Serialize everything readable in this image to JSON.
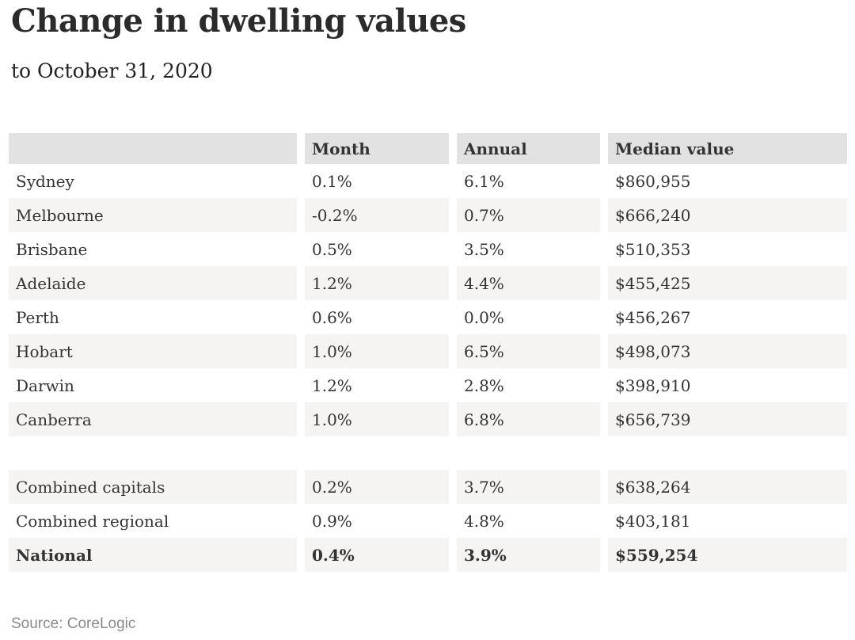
{
  "page": {
    "title": "Change in dwelling values",
    "subtitle": "to October 31, 2020",
    "source_note": "Source: CoreLogic"
  },
  "colors": {
    "header_bg": "#e2e2e2",
    "shaded_row_bg": "#f5f4f2",
    "body_text": "#333333",
    "title_text": "#2b2b2b",
    "source_text": "#8a8a8a"
  },
  "chart_data": {
    "type": "table",
    "title": "Change in dwelling values",
    "subtitle": "to October 31, 2020",
    "source": "Source: CoreLogic",
    "headers": [
      "",
      "Month",
      "Annual",
      "Median value"
    ],
    "rows": [
      {
        "label": "Sydney",
        "month": "0.1%",
        "annual": "6.1%",
        "median": "$860,955"
      },
      {
        "label": "Melbourne",
        "month": "-0.2%",
        "annual": "0.7%",
        "median": "$666,240"
      },
      {
        "label": "Brisbane",
        "month": "0.5%",
        "annual": "3.5%",
        "median": "$510,353"
      },
      {
        "label": "Adelaide",
        "month": "1.2%",
        "annual": "4.4%",
        "median": "$455,425"
      },
      {
        "label": "Perth",
        "month": "0.6%",
        "annual": "0.0%",
        "median": "$456,267"
      },
      {
        "label": "Hobart",
        "month": "1.0%",
        "annual": "6.5%",
        "median": "$498,073"
      },
      {
        "label": "Darwin",
        "month": "1.2%",
        "annual": "2.8%",
        "median": "$398,910"
      },
      {
        "label": "Canberra",
        "month": "1.0%",
        "annual": "6.8%",
        "median": "$656,739"
      },
      {
        "label": "Combined capitals",
        "month": "0.2%",
        "annual": "3.7%",
        "median": "$638,264"
      },
      {
        "label": "Combined regional",
        "month": "0.9%",
        "annual": "4.8%",
        "median": "$403,181"
      },
      {
        "label": "National",
        "month": "0.4%",
        "annual": "3.9%",
        "median": "$559,254"
      }
    ]
  }
}
